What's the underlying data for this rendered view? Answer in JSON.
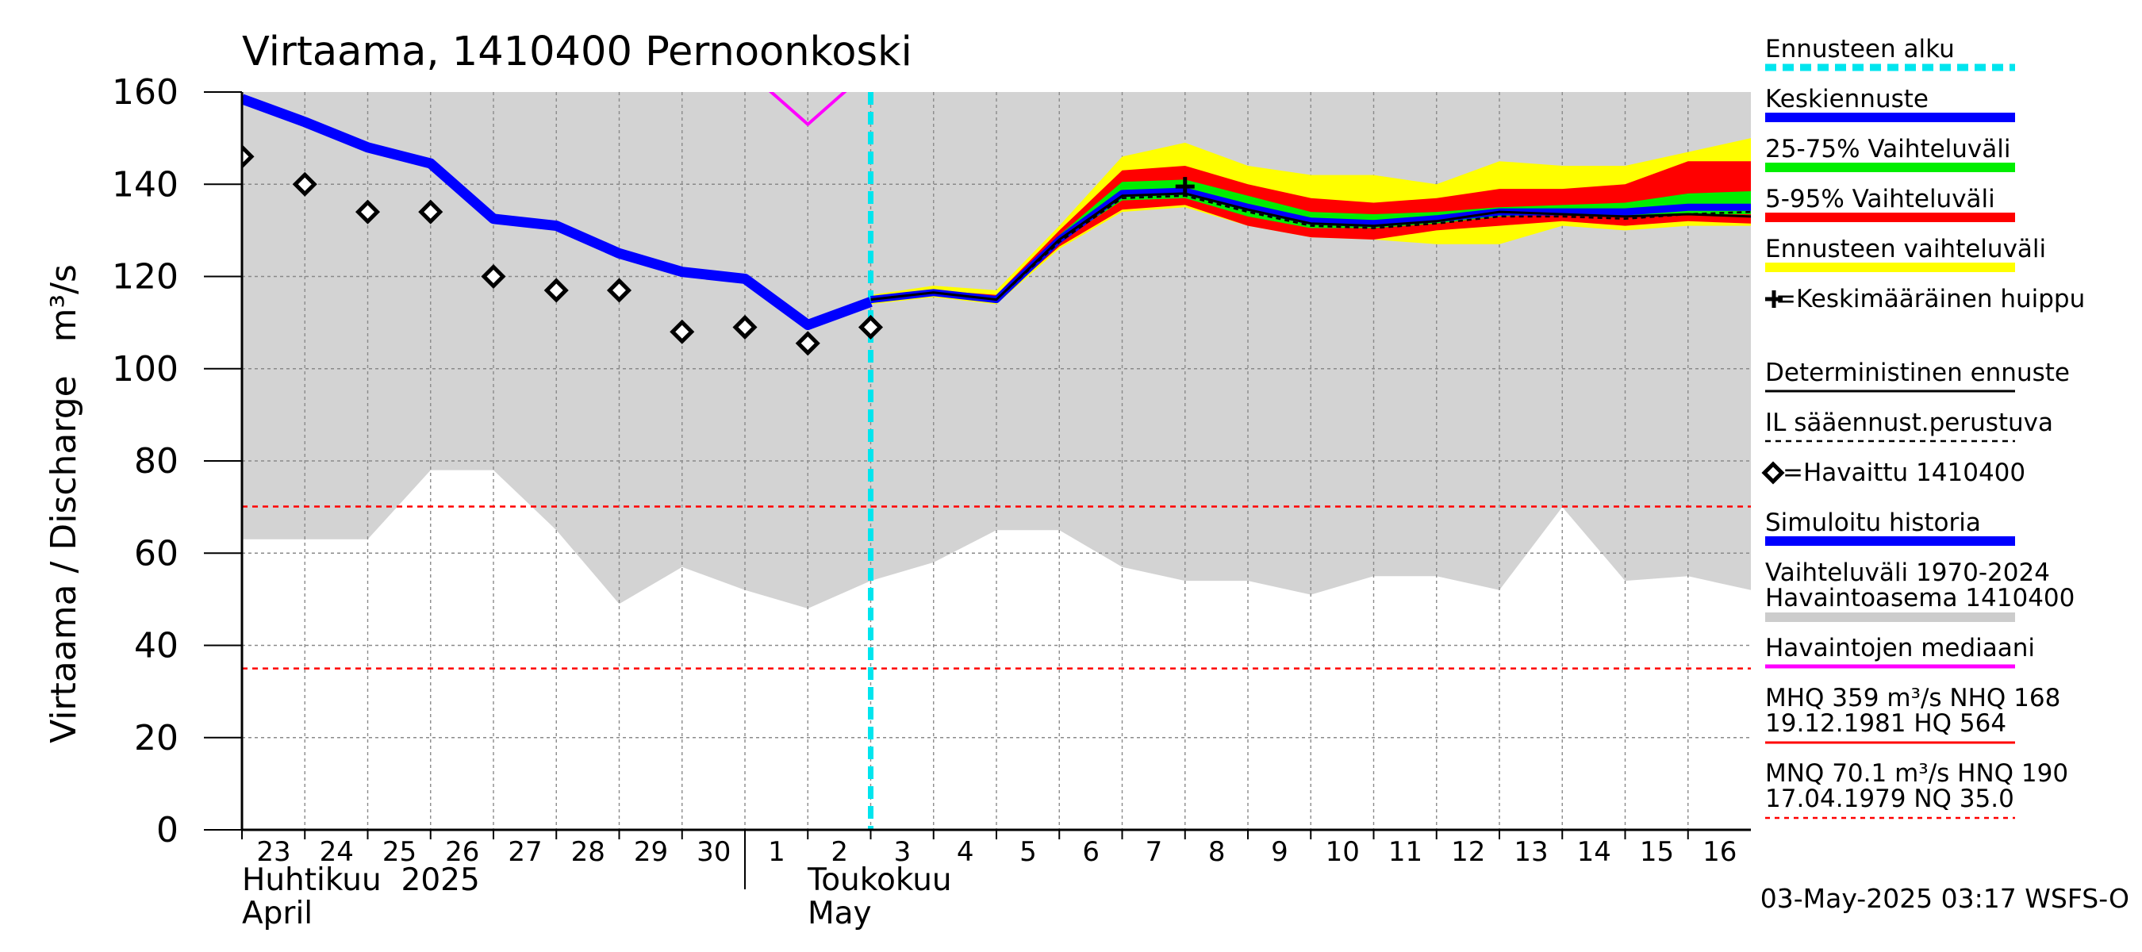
{
  "chart_data": {
    "type": "line",
    "title": "Virtaama, 1410400 Pernoonkoski",
    "ylabel": "Virtaama / Discharge   m³/s",
    "ylim": [
      0,
      160
    ],
    "yticks": [
      0,
      20,
      40,
      60,
      80,
      100,
      120,
      140,
      160
    ],
    "xlim": [
      "2025-04-23",
      "2025-05-17"
    ],
    "x_day_labels": [
      "23",
      "24",
      "25",
      "26",
      "27",
      "28",
      "29",
      "30",
      "1",
      "2",
      "3",
      "4",
      "5",
      "6",
      "7",
      "8",
      "9",
      "10",
      "11",
      "12",
      "13",
      "14",
      "15",
      "16"
    ],
    "month_labels": {
      "april_fi": "Huhtikuu  2025",
      "april_en": "April",
      "may_fi": "Toukokuu",
      "may_en": "May"
    },
    "forecast_start": "2025-05-03",
    "reference_lines": {
      "MNQ": 70.1,
      "NQ": 35.0
    },
    "history_range": {
      "name": "Vaihteluväli 1970-2024 Havaintoasema 1410400",
      "x": [
        "2025-04-23",
        "2025-04-25",
        "2025-04-26",
        "2025-04-27",
        "2025-04-28",
        "2025-04-29",
        "2025-04-30",
        "2025-05-01",
        "2025-05-02",
        "2025-05-03",
        "2025-05-04",
        "2025-05-05",
        "2025-05-06",
        "2025-05-07",
        "2025-05-08",
        "2025-05-09",
        "2025-05-10",
        "2025-05-11",
        "2025-05-12",
        "2025-05-13",
        "2025-05-14",
        "2025-05-15",
        "2025-05-16",
        "2025-05-17"
      ],
      "low": [
        63,
        63,
        78,
        78,
        65,
        49,
        57,
        52,
        48,
        54,
        58,
        65,
        65,
        57,
        54,
        54,
        51,
        55,
        55,
        52,
        70,
        54,
        55,
        52
      ],
      "high": [
        160,
        160,
        160,
        160,
        160,
        160,
        160,
        160,
        160,
        160,
        160,
        160,
        160,
        160,
        160,
        160,
        160,
        160,
        160,
        160,
        160,
        160,
        160,
        160
      ]
    },
    "forecast_bands": {
      "x": [
        "2025-05-03",
        "2025-05-04",
        "2025-05-05",
        "2025-05-06",
        "2025-05-07",
        "2025-05-08",
        "2025-05-09",
        "2025-05-10",
        "2025-05-11",
        "2025-05-12",
        "2025-05-13",
        "2025-05-14",
        "2025-05-15",
        "2025-05-16",
        "2025-05-17"
      ],
      "outer_min": [
        114,
        115.5,
        114,
        126,
        134,
        135,
        131,
        128.5,
        128,
        127,
        127,
        131,
        130,
        131,
        131
      ],
      "outer_max": [
        116,
        118,
        117,
        131,
        146,
        149,
        144,
        142,
        142,
        140,
        145,
        144,
        144,
        147,
        150
      ],
      "p5": [
        114.5,
        116,
        114.5,
        126.5,
        134.5,
        135.5,
        131,
        128.5,
        128,
        130,
        131,
        132,
        131,
        132,
        131.5
      ],
      "p95": [
        115.5,
        117,
        116,
        130,
        143,
        144,
        140,
        137,
        136,
        137,
        139,
        139,
        140,
        145,
        145
      ],
      "p25": [
        114.8,
        116.2,
        114.8,
        127.5,
        136.5,
        137,
        133,
        130.5,
        130.5,
        131.5,
        133,
        133.5,
        133,
        133.5,
        133.5
      ],
      "p75": [
        115.2,
        116.8,
        115.5,
        129,
        140.5,
        141,
        137.5,
        134,
        133.5,
        134,
        135,
        135.5,
        136,
        138,
        138.5
      ]
    },
    "series": [
      {
        "name": "Simuloitu historia",
        "color": "#0000ff",
        "x": [
          "2025-04-23",
          "2025-04-24",
          "2025-04-25",
          "2025-04-26",
          "2025-04-27",
          "2025-04-28",
          "2025-04-29",
          "2025-04-30",
          "2025-05-01",
          "2025-05-02",
          "2025-05-03"
        ],
        "values": [
          158.5,
          153.5,
          148,
          144.5,
          132.5,
          131,
          125,
          121,
          119.5,
          109.5,
          114.5
        ]
      },
      {
        "name": "Keskiennuste",
        "color": "#0000ff",
        "x": [
          "2025-05-03",
          "2025-05-04",
          "2025-05-05",
          "2025-05-06",
          "2025-05-07",
          "2025-05-08",
          "2025-05-09",
          "2025-05-10",
          "2025-05-11",
          "2025-05-12",
          "2025-05-13",
          "2025-05-14",
          "2025-05-15",
          "2025-05-16",
          "2025-05-17"
        ],
        "values": [
          115,
          116.5,
          115,
          128,
          138,
          138.5,
          135,
          132,
          131.5,
          132.5,
          134,
          134,
          134,
          135,
          135
        ]
      },
      {
        "name": "Deterministinen ennuste",
        "color": "#000000",
        "x": [
          "2025-05-03",
          "2025-05-04",
          "2025-05-05",
          "2025-05-06",
          "2025-05-07",
          "2025-05-08",
          "2025-05-09",
          "2025-05-10",
          "2025-05-11",
          "2025-05-12",
          "2025-05-13",
          "2025-05-14",
          "2025-05-15",
          "2025-05-16",
          "2025-05-17"
        ],
        "values": [
          115,
          116.5,
          115,
          128,
          137.5,
          138,
          134.5,
          131.5,
          131,
          132,
          134,
          133.5,
          133,
          133.5,
          133
        ]
      },
      {
        "name": "IL sääennust.perustuva",
        "color": "#000000",
        "x": [
          "2025-05-03",
          "2025-05-04",
          "2025-05-05",
          "2025-05-06",
          "2025-05-07",
          "2025-05-08",
          "2025-05-09",
          "2025-05-10",
          "2025-05-11",
          "2025-05-12",
          "2025-05-13",
          "2025-05-14",
          "2025-05-15",
          "2025-05-16",
          "2025-05-17"
        ],
        "values": [
          115,
          116.5,
          115,
          127.5,
          137,
          137.5,
          134,
          131,
          130.5,
          131.5,
          133,
          133,
          132.5,
          133.5,
          134
        ]
      },
      {
        "name": "Havaittu 1410400",
        "color": "#000000",
        "x": [
          "2025-04-23",
          "2025-04-24",
          "2025-04-25",
          "2025-04-26",
          "2025-04-27",
          "2025-04-28",
          "2025-04-29",
          "2025-04-30",
          "2025-05-01",
          "2025-05-02",
          "2025-05-03"
        ],
        "values": [
          146,
          140,
          134,
          134,
          120,
          117,
          117,
          108,
          109,
          105.5,
          109
        ]
      },
      {
        "name": "Havaintojen mediaani",
        "color": "#ff00ff",
        "x": [
          "2025-05-01",
          "2025-05-02",
          "2025-05-03"
        ],
        "values": [
          165,
          153,
          165
        ]
      }
    ],
    "peak_marker": {
      "name": "Keskimääräinen huippu",
      "x": "2025-05-08",
      "y": 139.5
    },
    "legend": [
      {
        "key": "ennusteen_alku",
        "label": "Ennusteen alku",
        "color": "#00e5ee",
        "style": "dashed-thick"
      },
      {
        "key": "keskiennuste",
        "label": "Keskiennuste",
        "color": "#0000ff",
        "style": "thick"
      },
      {
        "key": "v25_75",
        "label": "25-75% Vaihteluväli",
        "color": "#00ee00",
        "style": "thick"
      },
      {
        "key": "v5_95",
        "label": "5-95% Vaihteluväli",
        "color": "#ff0000",
        "style": "thick"
      },
      {
        "key": "ennuste_vaihtelu",
        "label": "Ennusteen vaihteluväli",
        "color": "#ffff00",
        "style": "thick"
      },
      {
        "key": "huippu",
        "label": "+=Keskimääräinen huippu",
        "color": "#000000",
        "style": "none"
      },
      {
        "key": "deterministinen",
        "label": "Deterministinen ennuste",
        "color": "#000000",
        "style": "thin"
      },
      {
        "key": "il",
        "label": "IL sääennust.perustuva",
        "color": "#000000",
        "style": "dashed"
      },
      {
        "key": "havaittu",
        "label": "=Havaittu 1410400",
        "color": "#000000",
        "style": "none"
      },
      {
        "key": "simuloitu",
        "label": "Simuloitu historia",
        "color": "#0000ff",
        "style": "thick"
      },
      {
        "key": "vaihteluvali",
        "label": "Vaihteluväli 1970-2024",
        "label2": " Havaintoasema 1410400",
        "color": "#cccccc",
        "style": "thick"
      },
      {
        "key": "mediaani",
        "label": "Havaintojen mediaani",
        "color": "#ff00ff",
        "style": "medium"
      },
      {
        "key": "mhq",
        "label": "MHQ  359 m³/s NHQ  168",
        "label2": "19.12.1981 HQ  564",
        "color": "#ff0000",
        "style": "thin"
      },
      {
        "key": "mnq",
        "label": "MNQ 70.1 m³/s HNQ  190",
        "label2": "17.04.1979 NQ 35.0",
        "color": "#ff0000",
        "style": "dotted"
      }
    ],
    "footer": "03-May-2025 03:17 WSFS-O"
  }
}
